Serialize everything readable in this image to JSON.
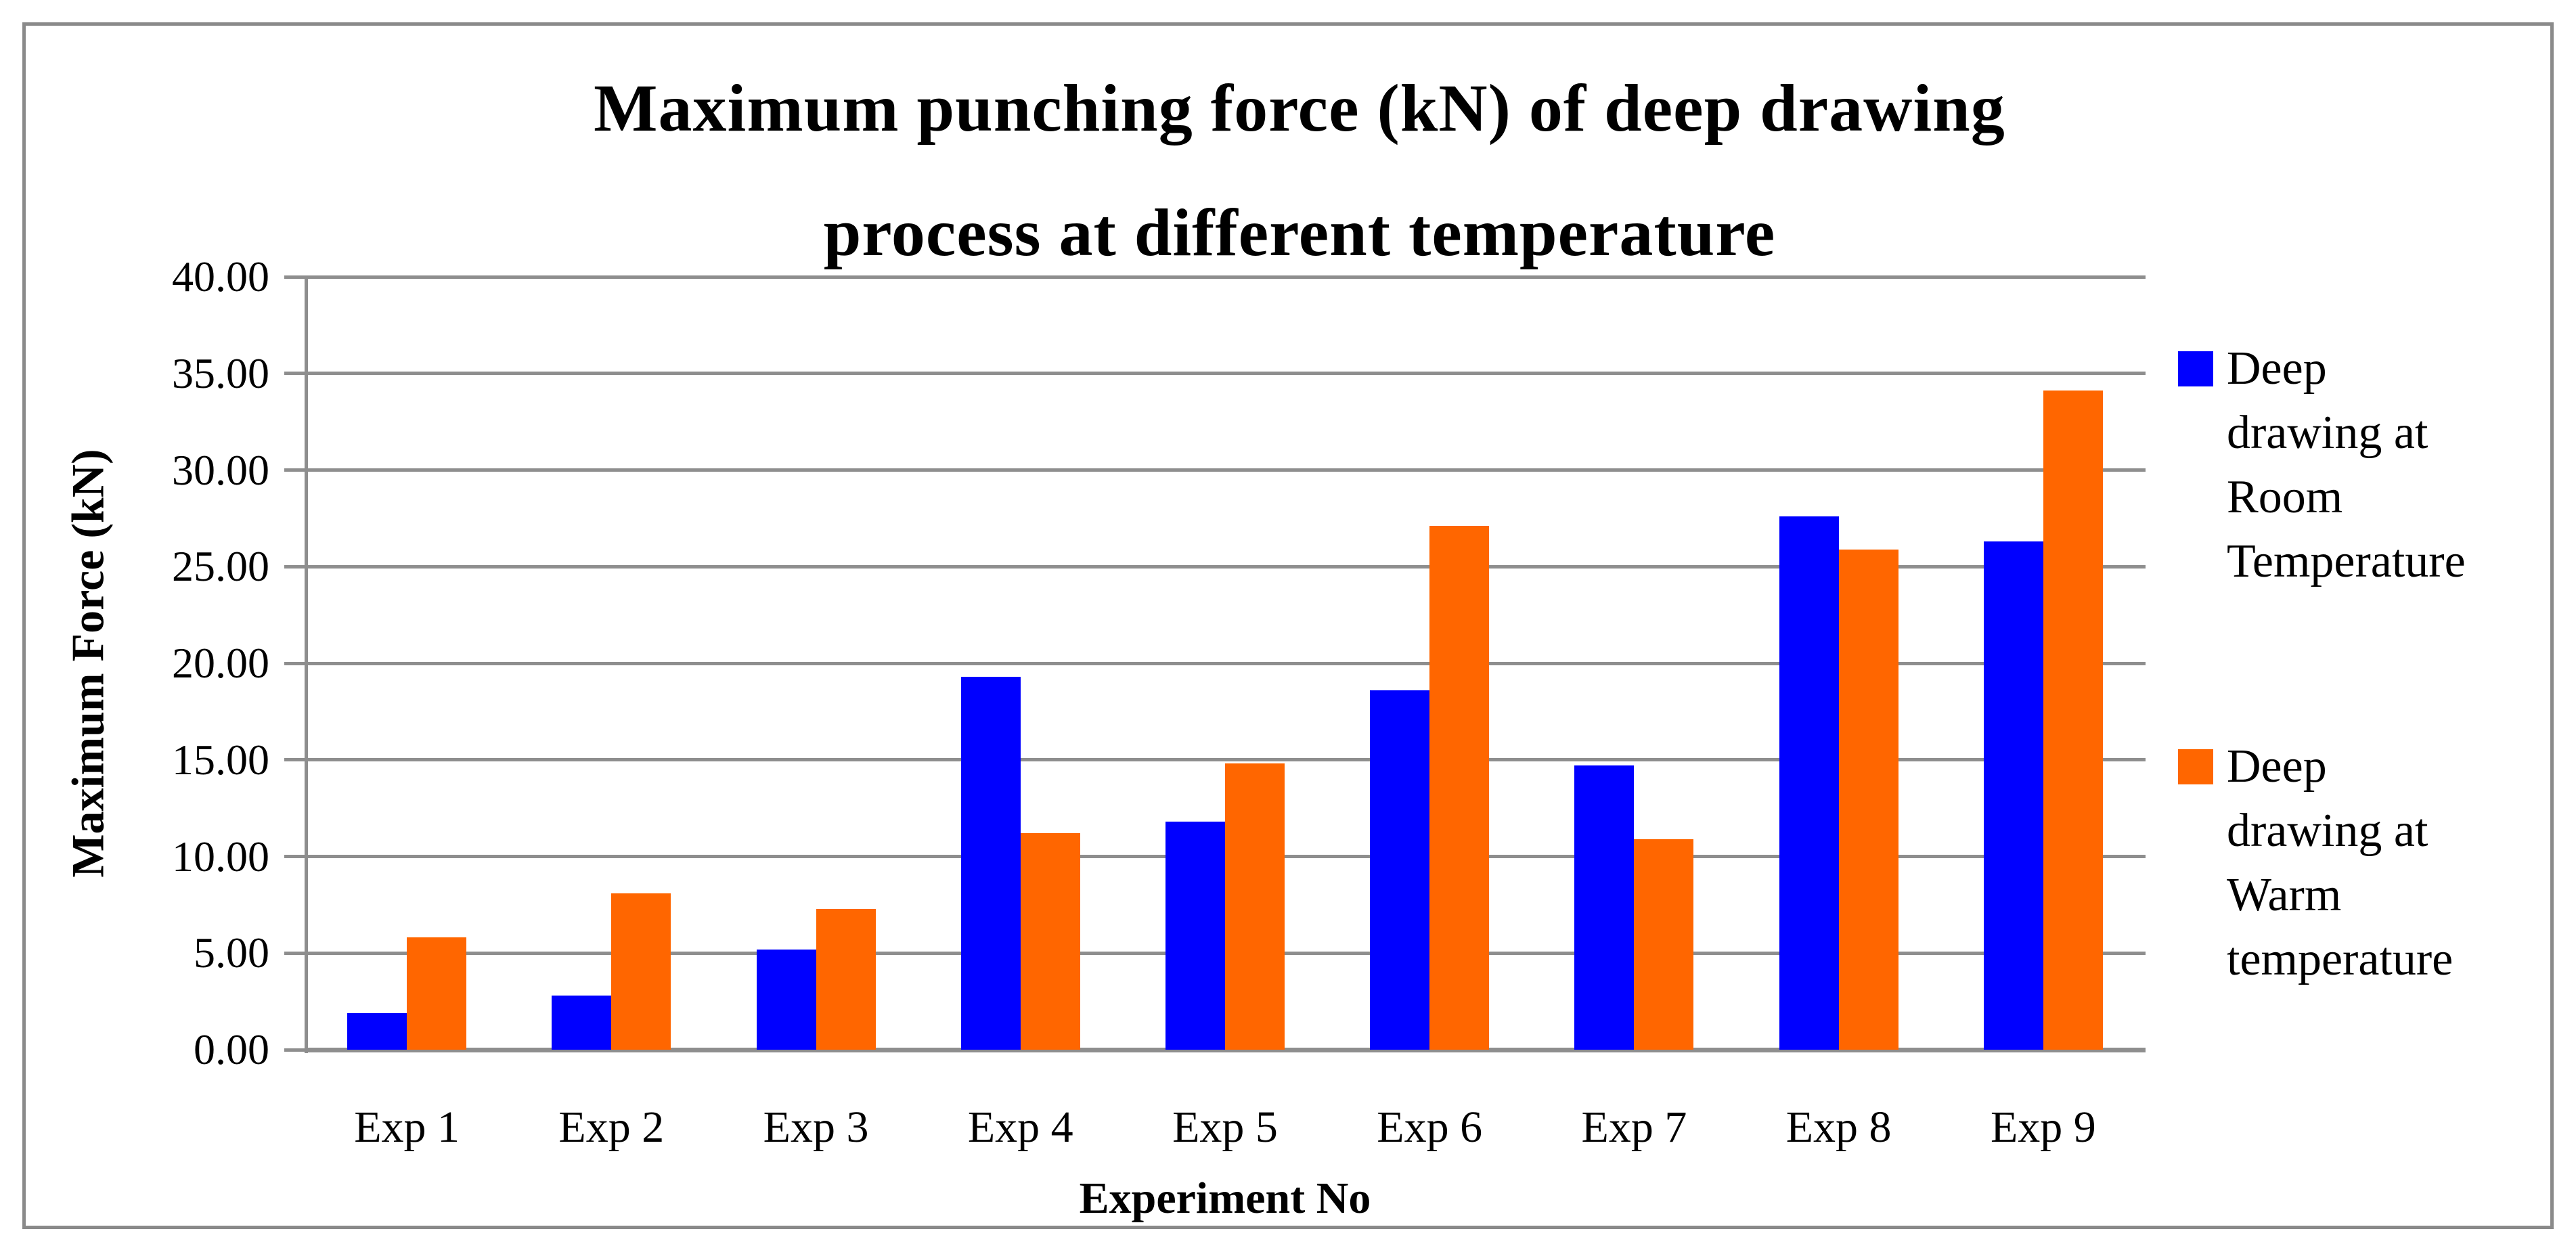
{
  "chart_data": {
    "type": "bar",
    "title": "Maximum punching force (kN) of deep drawing process at different temperature",
    "title_lines": [
      "Maximum punching force (kN) of deep drawing",
      "process at different temperature"
    ],
    "xlabel": "Experiment No",
    "ylabel": "Maximum Force (kN)",
    "categories": [
      "Exp 1",
      "Exp 2",
      "Exp 3",
      "Exp 4",
      "Exp 5",
      "Exp 6",
      "Exp 7",
      "Exp 8",
      "Exp 9"
    ],
    "series": [
      {
        "name": "Deep drawing at Room Temperature",
        "color": "#0000FF",
        "values": [
          1.9,
          2.8,
          5.2,
          19.3,
          11.8,
          18.6,
          14.7,
          27.6,
          26.3
        ]
      },
      {
        "name": "Deep drawing at Warm temperature",
        "color": "#FF6600",
        "values": [
          5.8,
          8.1,
          7.3,
          11.2,
          14.8,
          27.1,
          10.9,
          25.9,
          34.1
        ]
      }
    ],
    "ylim": [
      0,
      40
    ],
    "ytick_step": 5,
    "ytick_labels": [
      "0.00",
      "5.00",
      "10.00",
      "15.00",
      "20.00",
      "25.00",
      "30.00",
      "35.00",
      "40.00"
    ],
    "grid": true,
    "legend_position": "right"
  },
  "legend": {
    "items": [
      {
        "series": "room",
        "color": "#0000FF",
        "lines": [
          "Deep",
          "drawing at",
          "Room",
          "Temperature"
        ]
      },
      {
        "series": "warm",
        "color": "#FF6600",
        "lines": [
          "Deep",
          "drawing at",
          "Warm",
          "temperature"
        ]
      }
    ]
  },
  "colors": {
    "series_room": "#0000FF",
    "series_warm": "#FF6600",
    "gridline": "#8E8E8E",
    "axis_line": "#8E8E8E",
    "frame_border": "#8A8A8A",
    "background": "#FFFFFF",
    "text": "#000000"
  }
}
